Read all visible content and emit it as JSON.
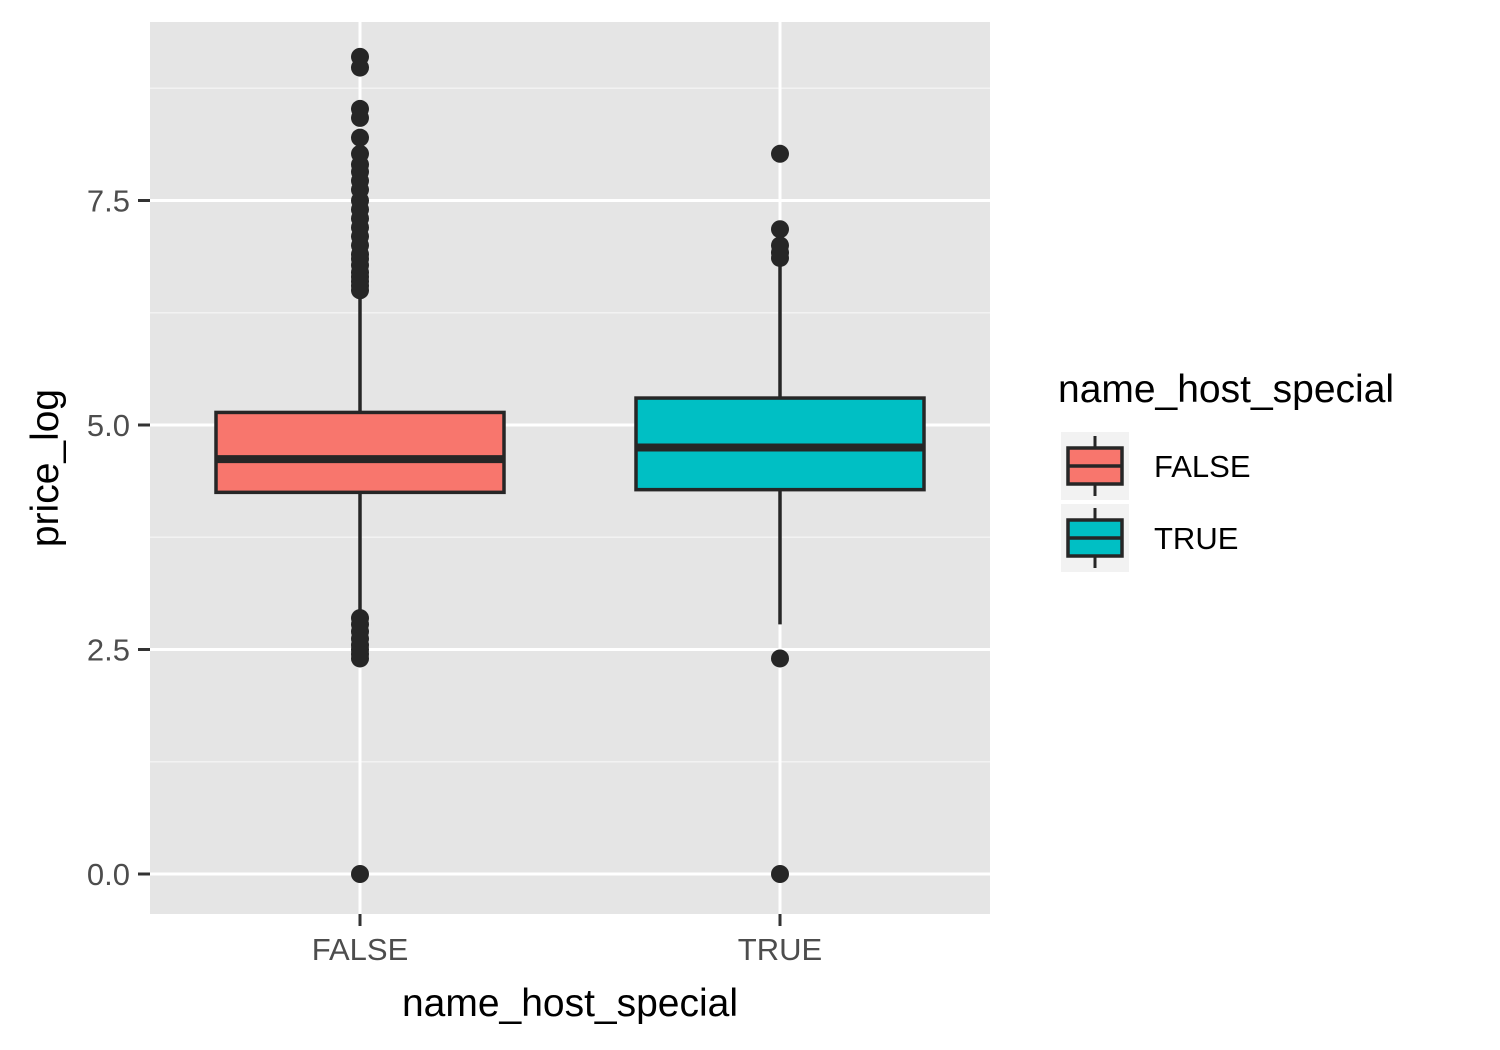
{
  "chart_data": {
    "type": "boxplot",
    "title": "",
    "xlabel": "name_host_special",
    "ylabel": "price_log",
    "categories": [
      "FALSE",
      "TRUE"
    ],
    "ylim": [
      -0.45,
      9.5
    ],
    "yticks": [
      0.0,
      2.5,
      5.0,
      7.5
    ],
    "ytick_labels": [
      "0.0",
      "2.5",
      "5.0",
      "7.5"
    ],
    "grid": true,
    "legend": {
      "title": "name_host_special",
      "position": "right",
      "entries": [
        {
          "label": "FALSE",
          "color": "#F8766D"
        },
        {
          "label": "TRUE",
          "color": "#00BFC4"
        }
      ]
    },
    "boxes": [
      {
        "category": "FALSE",
        "color": "#F8766D",
        "whisker_low": 2.4,
        "q1": 4.25,
        "median": 4.62,
        "q3": 5.14,
        "whisker_high": 6.5,
        "outliers": [
          0.0,
          2.4,
          2.45,
          2.5,
          2.55,
          2.62,
          2.7,
          2.78,
          2.85,
          6.5,
          6.55,
          6.6,
          6.65,
          6.7,
          6.78,
          6.85,
          6.9,
          7.0,
          7.1,
          7.2,
          7.3,
          7.4,
          7.5,
          7.62,
          7.72,
          7.82,
          7.9,
          8.02,
          8.2,
          8.42,
          8.52,
          8.98,
          9.1
        ]
      },
      {
        "category": "TRUE",
        "color": "#00BFC4",
        "whisker_low": 2.78,
        "q1": 4.28,
        "median": 4.75,
        "q3": 5.3,
        "whisker_high": 6.85,
        "outliers": [
          0.0,
          2.4,
          6.86,
          6.92,
          7.0,
          7.18,
          8.02
        ]
      }
    ]
  },
  "colors": {
    "panel_background": "#E5E5E5",
    "grid_major": "#FFFFFF",
    "grid_minor": "#F2F2F2",
    "outline": "#262626",
    "tick_text": "#4D4D4D"
  }
}
